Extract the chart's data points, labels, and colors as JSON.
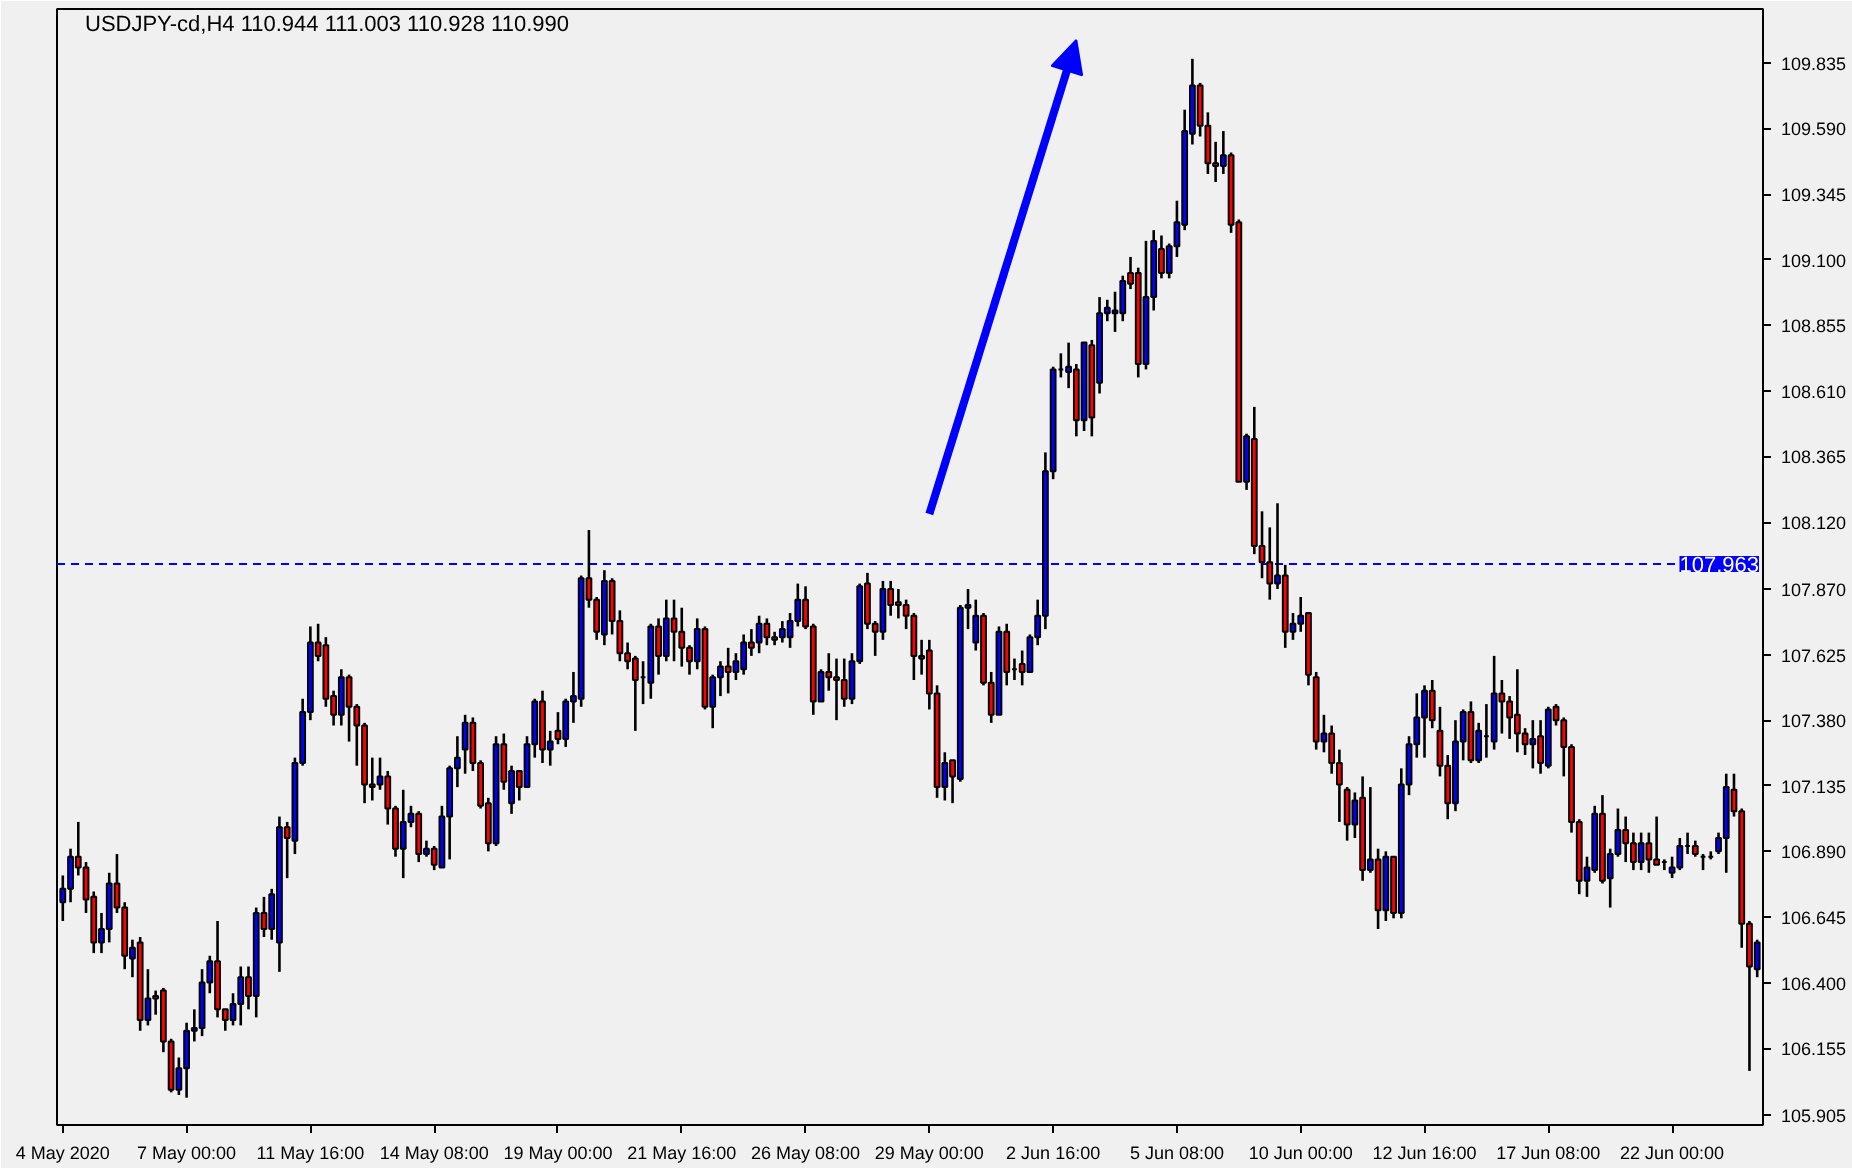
{
  "chart_data": {
    "type": "candlestick",
    "title": "USDJPY-cd,H4  110.944 111.003 110.928 110.990",
    "categories": [
      "4 May 2020",
      null,
      null,
      null,
      null,
      null,
      null,
      null,
      null,
      null,
      null,
      null,
      null,
      null,
      null,
      null,
      "7 May 00:00",
      null,
      null,
      null,
      null,
      null,
      null,
      null,
      null,
      null,
      null,
      null,
      null,
      null,
      null,
      null,
      "11 May 16:00",
      null,
      null,
      null,
      null,
      null,
      null,
      null,
      null,
      null,
      null,
      null,
      null,
      null,
      null,
      null,
      "14 May 08:00",
      null,
      null,
      null,
      null,
      null,
      null,
      null,
      null,
      null,
      null,
      null,
      null,
      null,
      null,
      null,
      "19 May 00:00",
      null,
      null,
      null,
      null,
      null,
      null,
      null,
      null,
      null,
      null,
      null,
      null,
      null,
      null,
      null,
      "21 May 16:00",
      null,
      null,
      null,
      null,
      null,
      null,
      null,
      null,
      null,
      null,
      null,
      null,
      null,
      null,
      null,
      "26 May 08:00",
      null,
      null,
      null,
      null,
      null,
      null,
      null,
      null,
      null,
      null,
      null,
      null,
      null,
      null,
      null,
      "29 May 00:00",
      null,
      null,
      null,
      null,
      null,
      null,
      null,
      null,
      null,
      null,
      null,
      null,
      null,
      null,
      null,
      "2 Jun 16:00",
      null,
      null,
      null,
      null,
      null,
      null,
      null,
      null,
      null,
      null,
      null,
      null,
      null,
      null,
      null,
      "5 Jun 08:00",
      null,
      null,
      null,
      null,
      null,
      null,
      null,
      null,
      null,
      null,
      null,
      null,
      null,
      null,
      null,
      "10 Jun 00:00",
      null,
      null,
      null,
      null,
      null,
      null,
      null,
      null,
      null,
      null,
      null,
      null,
      null,
      null,
      null,
      "12 Jun 16:00",
      null,
      null,
      null,
      null,
      null,
      null,
      null,
      null,
      null,
      null,
      null,
      null,
      null,
      null,
      null,
      "17 Jun 08:00",
      null,
      null,
      null,
      null,
      null,
      null,
      null,
      null,
      null,
      null,
      null,
      null,
      null,
      null,
      null,
      "22 Jun 00:00",
      null,
      null,
      null,
      null,
      null,
      null,
      null,
      null,
      null,
      null,
      null
    ],
    "ohlc": [
      [
        106.7,
        106.8,
        106.63,
        106.75
      ],
      [
        106.75,
        106.9,
        106.7,
        106.87
      ],
      [
        106.87,
        107.0,
        106.8,
        106.83
      ],
      [
        106.83,
        106.85,
        106.66,
        106.71
      ],
      [
        106.72,
        106.74,
        106.51,
        106.55
      ],
      [
        106.55,
        106.66,
        106.51,
        106.6
      ],
      [
        106.6,
        106.81,
        106.55,
        106.77
      ],
      [
        106.77,
        106.88,
        106.66,
        106.68
      ],
      [
        106.68,
        106.7,
        106.45,
        106.5
      ],
      [
        106.49,
        106.56,
        106.42,
        106.53
      ],
      [
        106.55,
        106.57,
        106.22,
        106.26
      ],
      [
        106.26,
        106.45,
        106.24,
        106.34
      ],
      [
        106.35,
        106.37,
        106.28,
        106.34
      ],
      [
        106.37,
        106.38,
        106.14,
        106.18
      ],
      [
        106.18,
        106.19,
        105.99,
        106.0
      ],
      [
        106.0,
        106.12,
        105.98,
        106.08
      ],
      [
        106.08,
        106.25,
        105.97,
        106.22
      ],
      [
        106.22,
        106.3,
        106.18,
        106.23
      ],
      [
        106.23,
        106.45,
        106.2,
        106.4
      ],
      [
        106.4,
        106.5,
        106.36,
        106.48
      ],
      [
        106.48,
        106.63,
        106.27,
        106.3
      ],
      [
        106.3,
        106.3,
        106.22,
        106.26
      ],
      [
        106.26,
        106.36,
        106.24,
        106.32
      ],
      [
        106.32,
        106.46,
        106.24,
        106.42
      ],
      [
        106.42,
        106.46,
        106.3,
        106.35
      ],
      [
        106.35,
        106.68,
        106.27,
        106.66
      ],
      [
        106.66,
        106.72,
        106.57,
        106.6
      ],
      [
        106.6,
        106.75,
        106.56,
        106.73
      ],
      [
        106.55,
        107.02,
        106.44,
        106.98
      ],
      [
        106.98,
        107.0,
        106.79,
        106.94
      ],
      [
        106.93,
        107.24,
        106.88,
        107.22
      ],
      [
        107.22,
        107.46,
        107.21,
        107.41
      ],
      [
        107.41,
        107.73,
        107.38,
        107.67
      ],
      [
        107.67,
        107.74,
        107.6,
        107.62
      ],
      [
        107.66,
        107.69,
        107.43,
        107.46
      ],
      [
        107.47,
        107.49,
        107.36,
        107.4
      ],
      [
        107.4,
        107.57,
        107.36,
        107.54
      ],
      [
        107.54,
        107.55,
        107.3,
        107.43
      ],
      [
        107.43,
        107.44,
        107.21,
        107.36
      ],
      [
        107.36,
        107.37,
        107.07,
        107.14
      ],
      [
        107.14,
        107.24,
        107.08,
        107.13
      ],
      [
        107.14,
        107.24,
        107.12,
        107.17
      ],
      [
        107.17,
        107.19,
        106.99,
        107.05
      ],
      [
        107.05,
        107.06,
        106.87,
        106.9
      ],
      [
        106.9,
        107.12,
        106.79,
        107.0
      ],
      [
        107.0,
        107.06,
        106.98,
        107.03
      ],
      [
        107.03,
        107.04,
        106.85,
        106.88
      ],
      [
        106.88,
        106.93,
        106.87,
        106.9
      ],
      [
        106.9,
        106.91,
        106.82,
        106.84
      ],
      [
        106.83,
        107.06,
        106.83,
        107.02
      ],
      [
        107.02,
        107.21,
        106.86,
        107.2
      ],
      [
        107.2,
        107.32,
        107.13,
        107.24
      ],
      [
        107.27,
        107.4,
        107.18,
        107.37
      ],
      [
        107.37,
        107.39,
        107.19,
        107.22
      ],
      [
        107.22,
        107.23,
        107.05,
        107.06
      ],
      [
        107.07,
        107.09,
        106.89,
        106.92
      ],
      [
        106.92,
        107.32,
        106.91,
        107.29
      ],
      [
        107.29,
        107.33,
        107.12,
        107.15
      ],
      [
        107.07,
        107.21,
        107.03,
        107.19
      ],
      [
        107.19,
        107.19,
        107.08,
        107.13
      ],
      [
        107.13,
        107.32,
        107.13,
        107.29
      ],
      [
        107.29,
        107.46,
        107.24,
        107.45
      ],
      [
        107.45,
        107.49,
        107.22,
        107.27
      ],
      [
        107.27,
        107.34,
        107.21,
        107.3
      ],
      [
        107.34,
        107.41,
        107.29,
        107.31
      ],
      [
        107.31,
        107.46,
        107.28,
        107.45
      ],
      [
        107.45,
        107.56,
        107.37,
        107.47
      ],
      [
        107.46,
        107.92,
        107.43,
        107.91
      ],
      [
        107.91,
        108.09,
        107.8,
        107.83
      ],
      [
        107.83,
        107.84,
        107.68,
        107.71
      ],
      [
        107.7,
        107.94,
        107.66,
        107.9
      ],
      [
        107.9,
        107.91,
        107.7,
        107.75
      ],
      [
        107.75,
        107.79,
        107.6,
        107.63
      ],
      [
        107.63,
        107.67,
        107.57,
        107.6
      ],
      [
        107.61,
        107.62,
        107.34,
        107.53
      ],
      [
        107.54,
        107.6,
        107.44,
        107.54
      ],
      [
        107.52,
        107.74,
        107.46,
        107.73
      ],
      [
        107.73,
        107.76,
        107.55,
        107.62
      ],
      [
        107.62,
        107.83,
        107.6,
        107.76
      ],
      [
        107.76,
        107.83,
        107.6,
        107.71
      ],
      [
        107.71,
        107.8,
        107.58,
        107.65
      ],
      [
        107.65,
        107.66,
        107.55,
        107.6
      ],
      [
        107.6,
        107.76,
        107.57,
        107.72
      ],
      [
        107.72,
        107.73,
        107.42,
        107.43
      ],
      [
        107.43,
        107.55,
        107.35,
        107.54
      ],
      [
        107.54,
        107.6,
        107.47,
        107.58
      ],
      [
        107.58,
        107.65,
        107.48,
        107.56
      ],
      [
        107.56,
        107.63,
        107.53,
        107.6
      ],
      [
        107.57,
        107.7,
        107.55,
        107.67
      ],
      [
        107.67,
        107.72,
        107.62,
        107.65
      ],
      [
        107.67,
        107.77,
        107.63,
        107.74
      ],
      [
        107.74,
        107.76,
        107.66,
        107.69
      ],
      [
        107.69,
        107.71,
        107.66,
        107.68
      ],
      [
        107.69,
        107.75,
        107.67,
        107.72
      ],
      [
        107.69,
        107.78,
        107.65,
        107.75
      ],
      [
        107.75,
        107.89,
        107.73,
        107.83
      ],
      [
        107.83,
        107.88,
        107.72,
        107.73
      ],
      [
        107.73,
        107.74,
        107.4,
        107.45
      ],
      [
        107.45,
        107.57,
        107.45,
        107.56
      ],
      [
        107.56,
        107.63,
        107.49,
        107.54
      ],
      [
        107.54,
        107.61,
        107.38,
        107.53
      ],
      [
        107.53,
        107.61,
        107.43,
        107.46
      ],
      [
        107.46,
        107.63,
        107.44,
        107.6
      ],
      [
        107.6,
        107.89,
        107.59,
        107.88
      ],
      [
        107.89,
        107.93,
        107.72,
        107.74
      ],
      [
        107.74,
        107.75,
        107.62,
        107.71
      ],
      [
        107.71,
        107.9,
        107.68,
        107.87
      ],
      [
        107.87,
        107.9,
        107.77,
        107.81
      ],
      [
        107.82,
        107.87,
        107.76,
        107.81
      ],
      [
        107.81,
        107.83,
        107.72,
        107.77
      ],
      [
        107.77,
        107.78,
        107.53,
        107.62
      ],
      [
        107.62,
        107.68,
        107.55,
        107.61
      ],
      [
        107.64,
        107.68,
        107.42,
        107.48
      ],
      [
        107.48,
        107.51,
        107.09,
        107.13
      ],
      [
        107.13,
        107.26,
        107.08,
        107.22
      ],
      [
        107.23,
        107.23,
        107.07,
        107.17
      ],
      [
        107.16,
        107.81,
        107.15,
        107.8
      ],
      [
        107.8,
        107.87,
        107.72,
        107.81
      ],
      [
        107.67,
        107.83,
        107.64,
        107.77
      ],
      [
        107.77,
        107.78,
        107.51,
        107.52
      ],
      [
        107.52,
        107.56,
        107.37,
        107.4
      ],
      [
        107.4,
        107.73,
        107.4,
        107.71
      ],
      [
        107.71,
        107.74,
        107.51,
        107.56
      ],
      [
        107.57,
        107.61,
        107.53,
        107.57
      ],
      [
        107.59,
        107.64,
        107.51,
        107.56
      ],
      [
        107.56,
        107.7,
        107.56,
        107.69
      ],
      [
        107.69,
        107.83,
        107.66,
        107.77
      ],
      [
        107.77,
        108.38,
        107.72,
        108.31
      ],
      [
        108.31,
        108.7,
        108.28,
        108.69
      ],
      [
        108.69,
        108.75,
        108.66,
        108.69
      ],
      [
        108.68,
        108.79,
        108.62,
        108.7
      ],
      [
        108.69,
        108.71,
        108.44,
        108.5
      ],
      [
        108.5,
        108.79,
        108.46,
        108.79
      ],
      [
        108.78,
        108.8,
        108.44,
        108.51
      ],
      [
        108.64,
        108.96,
        108.6,
        108.9
      ],
      [
        108.9,
        108.95,
        108.87,
        108.92
      ],
      [
        108.9,
        108.98,
        108.83,
        108.91
      ],
      [
        108.9,
        109.04,
        108.87,
        109.02
      ],
      [
        109.05,
        109.11,
        108.99,
        109.01
      ],
      [
        109.05,
        109.07,
        108.66,
        108.71
      ],
      [
        108.71,
        109.17,
        108.69,
        108.96
      ],
      [
        108.96,
        109.21,
        108.91,
        109.17
      ],
      [
        109.14,
        109.19,
        109.03,
        109.05
      ],
      [
        109.05,
        109.16,
        109.03,
        109.15
      ],
      [
        109.15,
        109.32,
        109.11,
        109.24
      ],
      [
        109.23,
        109.66,
        109.21,
        109.58
      ],
      [
        109.57,
        109.85,
        109.53,
        109.75
      ],
      [
        109.75,
        109.76,
        109.56,
        109.6
      ],
      [
        109.6,
        109.65,
        109.42,
        109.46
      ],
      [
        109.46,
        109.54,
        109.39,
        109.45
      ],
      [
        109.45,
        109.58,
        109.42,
        109.49
      ],
      [
        109.49,
        109.5,
        109.2,
        109.23
      ],
      [
        109.24,
        109.25,
        108.27,
        108.27
      ],
      [
        108.27,
        108.45,
        108.24,
        108.44
      ],
      [
        108.43,
        108.55,
        108.0,
        108.03
      ],
      [
        108.03,
        108.16,
        107.91,
        107.97
      ],
      [
        107.97,
        108.1,
        107.83,
        107.89
      ],
      [
        107.89,
        108.19,
        107.87,
        107.92
      ],
      [
        107.92,
        107.96,
        107.65,
        107.71
      ],
      [
        107.71,
        107.78,
        107.68,
        107.74
      ],
      [
        107.74,
        107.84,
        107.71,
        107.77
      ],
      [
        107.78,
        107.78,
        107.51,
        107.55
      ],
      [
        107.54,
        107.56,
        107.27,
        107.3
      ],
      [
        107.3,
        107.4,
        107.26,
        107.33
      ],
      [
        107.33,
        107.36,
        107.18,
        107.22
      ],
      [
        107.22,
        107.27,
        107.0,
        107.14
      ],
      [
        107.12,
        107.13,
        106.93,
        106.99
      ],
      [
        106.99,
        107.11,
        106.94,
        107.08
      ],
      [
        107.09,
        107.17,
        106.78,
        106.82
      ],
      [
        106.82,
        107.13,
        106.81,
        106.86
      ],
      [
        106.86,
        106.9,
        106.6,
        106.67
      ],
      [
        106.67,
        106.89,
        106.63,
        106.87
      ],
      [
        106.87,
        106.87,
        106.64,
        106.66
      ],
      [
        106.66,
        107.2,
        106.64,
        107.14
      ],
      [
        107.14,
        107.32,
        107.1,
        107.29
      ],
      [
        107.29,
        107.48,
        107.24,
        107.39
      ],
      [
        107.39,
        107.51,
        107.24,
        107.49
      ],
      [
        107.49,
        107.53,
        107.35,
        107.38
      ],
      [
        107.34,
        107.43,
        107.17,
        107.21
      ],
      [
        107.21,
        107.25,
        107.01,
        107.07
      ],
      [
        107.07,
        107.38,
        107.04,
        107.3
      ],
      [
        107.3,
        107.42,
        107.23,
        107.41
      ],
      [
        107.41,
        107.45,
        107.22,
        107.23
      ],
      [
        107.23,
        107.37,
        107.22,
        107.34
      ],
      [
        107.32,
        107.44,
        107.24,
        107.32
      ],
      [
        107.3,
        107.62,
        107.27,
        107.48
      ],
      [
        107.48,
        107.53,
        107.33,
        107.45
      ],
      [
        107.45,
        107.47,
        107.31,
        107.39
      ],
      [
        107.4,
        107.57,
        107.26,
        107.33
      ],
      [
        107.33,
        107.35,
        107.25,
        107.29
      ],
      [
        107.29,
        107.38,
        107.2,
        107.31
      ],
      [
        107.32,
        107.38,
        107.18,
        107.22
      ],
      [
        107.21,
        107.43,
        107.2,
        107.42
      ],
      [
        107.43,
        107.44,
        107.36,
        107.38
      ],
      [
        107.38,
        107.39,
        107.17,
        107.28
      ],
      [
        107.28,
        107.29,
        106.96,
        107.0
      ],
      [
        107.0,
        107.01,
        106.73,
        106.78
      ],
      [
        106.78,
        106.87,
        106.72,
        106.83
      ],
      [
        106.82,
        107.06,
        106.81,
        107.03
      ],
      [
        107.03,
        107.1,
        106.77,
        106.78
      ],
      [
        106.79,
        106.9,
        106.68,
        106.88
      ],
      [
        106.88,
        107.05,
        106.87,
        106.97
      ],
      [
        106.97,
        107.02,
        106.85,
        106.92
      ],
      [
        106.92,
        106.96,
        106.82,
        106.85
      ],
      [
        106.85,
        106.96,
        106.82,
        106.92
      ],
      [
        106.92,
        106.96,
        106.81,
        106.86
      ],
      [
        106.86,
        107.02,
        106.84,
        106.84
      ],
      [
        106.85,
        106.86,
        106.82,
        106.85
      ],
      [
        106.81,
        106.87,
        106.79,
        106.83
      ],
      [
        106.83,
        106.94,
        106.82,
        106.91
      ],
      [
        106.91,
        106.96,
        106.88,
        106.91
      ],
      [
        106.91,
        106.93,
        106.87,
        106.88
      ],
      [
        106.87,
        106.88,
        106.82,
        106.87
      ],
      [
        106.87,
        106.89,
        106.86,
        106.87
      ],
      [
        106.89,
        106.96,
        106.88,
        106.94
      ],
      [
        106.94,
        107.18,
        106.81,
        107.13
      ],
      [
        107.12,
        107.18,
        107.02,
        107.04
      ],
      [
        107.04,
        107.05,
        106.53,
        106.62
      ],
      [
        106.62,
        106.63,
        106.07,
        106.46
      ],
      [
        106.45,
        106.56,
        106.42,
        106.55
      ]
    ],
    "ylim": [
      105.868,
      110.036
    ],
    "yticks": [
      {
        "value": 109.835,
        "label": "109.835"
      },
      {
        "value": 109.59,
        "label": "109.590"
      },
      {
        "value": 109.345,
        "label": "109.345"
      },
      {
        "value": 109.1,
        "label": "109.100"
      },
      {
        "value": 108.855,
        "label": "108.855"
      },
      {
        "value": 108.61,
        "label": "108.610"
      },
      {
        "value": 108.365,
        "label": "108.365"
      },
      {
        "value": 108.12,
        "label": "108.120"
      },
      {
        "value": 107.87,
        "label": "107.870"
      },
      {
        "value": 107.625,
        "label": "107.625"
      },
      {
        "value": 107.38,
        "label": "107.380"
      },
      {
        "value": 107.135,
        "label": "107.135"
      },
      {
        "value": 106.89,
        "label": "106.890"
      },
      {
        "value": 106.645,
        "label": "106.645"
      },
      {
        "value": 106.4,
        "label": "106.400"
      },
      {
        "value": 106.155,
        "label": "106.155"
      },
      {
        "value": 105.905,
        "label": "105.905"
      }
    ],
    "ref_lines": [
      {
        "axis": "y",
        "value": 107.963,
        "label": "107.963",
        "color": "#0000ff",
        "line_style": "dashed"
      }
    ],
    "colors": [
      "#0000ff",
      "#0000ff",
      "#ff0000",
      "#ff0000",
      "#ff0000",
      "#0000ff",
      "#0000ff",
      "#ff0000",
      "#ff0000",
      "#0000ff",
      "#ff0000",
      "#0000ff",
      "#ff0000",
      "#ff0000",
      "#ff0000",
      "#0000ff",
      "#0000ff",
      "#0000ff",
      "#0000ff",
      "#0000ff",
      "#ff0000",
      "#ff0000",
      "#0000ff",
      "#0000ff",
      "#ff0000",
      "#0000ff",
      "#ff0000",
      "#0000ff",
      "#0000ff",
      "#ff0000",
      "#0000ff",
      "#0000ff",
      "#0000ff",
      "#ff0000",
      "#ff0000",
      "#ff0000",
      "#0000ff",
      "#ff0000",
      "#ff0000",
      "#ff0000",
      "#ff0000",
      "#0000ff",
      "#ff0000",
      "#ff0000",
      "#0000ff",
      "#0000ff",
      "#ff0000",
      "#0000ff",
      "#ff0000",
      "#0000ff",
      "#0000ff",
      "#0000ff",
      "#0000ff",
      "#ff0000",
      "#ff0000",
      "#ff0000",
      "#0000ff",
      "#ff0000",
      "#0000ff",
      "#ff0000",
      "#0000ff",
      "#0000ff",
      "#ff0000",
      "#0000ff",
      "#ff0000",
      "#0000ff",
      "#0000ff",
      "#0000ff",
      "#ff0000",
      "#ff0000",
      "#0000ff",
      "#ff0000",
      "#ff0000",
      "#ff0000",
      "#ff0000",
      "#000000",
      "#0000ff",
      "#ff0000",
      "#0000ff",
      "#ff0000",
      "#ff0000",
      "#ff0000",
      "#0000ff",
      "#ff0000",
      "#0000ff",
      "#0000ff",
      "#ff0000",
      "#0000ff",
      "#0000ff",
      "#ff0000",
      "#0000ff",
      "#ff0000",
      "#ff0000",
      "#0000ff",
      "#0000ff",
      "#0000ff",
      "#ff0000",
      "#ff0000",
      "#0000ff",
      "#ff0000",
      "#ff0000",
      "#ff0000",
      "#0000ff",
      "#0000ff",
      "#ff0000",
      "#ff0000",
      "#0000ff",
      "#ff0000",
      "#ff0000",
      "#ff0000",
      "#ff0000",
      "#ff0000",
      "#ff0000",
      "#ff0000",
      "#0000ff",
      "#ff0000",
      "#0000ff",
      "#0000ff",
      "#0000ff",
      "#ff0000",
      "#ff0000",
      "#0000ff",
      "#ff0000",
      "#000000",
      "#ff0000",
      "#0000ff",
      "#0000ff",
      "#0000ff",
      "#0000ff",
      "#000000",
      "#0000ff",
      "#ff0000",
      "#0000ff",
      "#ff0000",
      "#0000ff",
      "#0000ff",
      "#0000ff",
      "#0000ff",
      "#ff0000",
      "#ff0000",
      "#0000ff",
      "#0000ff",
      "#ff0000",
      "#0000ff",
      "#0000ff",
      "#0000ff",
      "#0000ff",
      "#ff0000",
      "#ff0000",
      "#ff0000",
      "#0000ff",
      "#ff0000",
      "#ff0000",
      "#0000ff",
      "#ff0000",
      "#ff0000",
      "#ff0000",
      "#0000ff",
      "#ff0000",
      "#0000ff",
      "#0000ff",
      "#ff0000",
      "#ff0000",
      "#0000ff",
      "#ff0000",
      "#ff0000",
      "#ff0000",
      "#0000ff",
      "#ff0000",
      "#0000ff",
      "#ff0000",
      "#0000ff",
      "#ff0000",
      "#0000ff",
      "#0000ff",
      "#0000ff",
      "#0000ff",
      "#ff0000",
      "#ff0000",
      "#ff0000",
      "#0000ff",
      "#0000ff",
      "#ff0000",
      "#0000ff",
      "#000000",
      "#0000ff",
      "#ff0000",
      "#ff0000",
      "#ff0000",
      "#ff0000",
      "#0000ff",
      "#ff0000",
      "#0000ff",
      "#ff0000",
      "#ff0000",
      "#ff0000",
      "#ff0000",
      "#0000ff",
      "#0000ff",
      "#ff0000",
      "#0000ff",
      "#0000ff",
      "#ff0000",
      "#ff0000",
      "#0000ff",
      "#ff0000",
      "#ff0000",
      "#000000",
      "#0000ff",
      "#0000ff",
      "#000000",
      "#ff0000",
      "#000000",
      "#000000",
      "#0000ff",
      "#0000ff",
      "#ff0000",
      "#ff0000",
      "#ff0000",
      "#0000ff"
    ]
  }
}
